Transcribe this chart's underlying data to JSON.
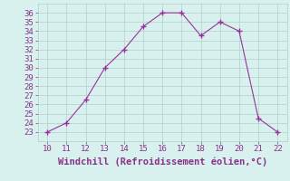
{
  "x": [
    10,
    11,
    12,
    13,
    14,
    15,
    16,
    17,
    18,
    19,
    20,
    21,
    22
  ],
  "y": [
    23,
    24,
    26.5,
    30,
    32,
    34.5,
    36,
    36,
    33.5,
    35,
    34,
    24.5,
    23
  ],
  "line_color": "#993399",
  "marker_color": "#993399",
  "bg_color": "#d8f0ee",
  "grid_color": "#b0d0cc",
  "xlabel": "Windchill (Refroidissement éolien,°C)",
  "xlim": [
    9.5,
    22.5
  ],
  "ylim": [
    22.0,
    37.0
  ],
  "xticks": [
    10,
    11,
    12,
    13,
    14,
    15,
    16,
    17,
    18,
    19,
    20,
    21,
    22
  ],
  "yticks": [
    23,
    24,
    25,
    26,
    27,
    28,
    29,
    30,
    31,
    32,
    33,
    34,
    35,
    36
  ],
  "tick_label_color": "#883388",
  "xlabel_color": "#883388",
  "xlabel_fontsize": 7.5,
  "tick_fontsize": 6.5
}
